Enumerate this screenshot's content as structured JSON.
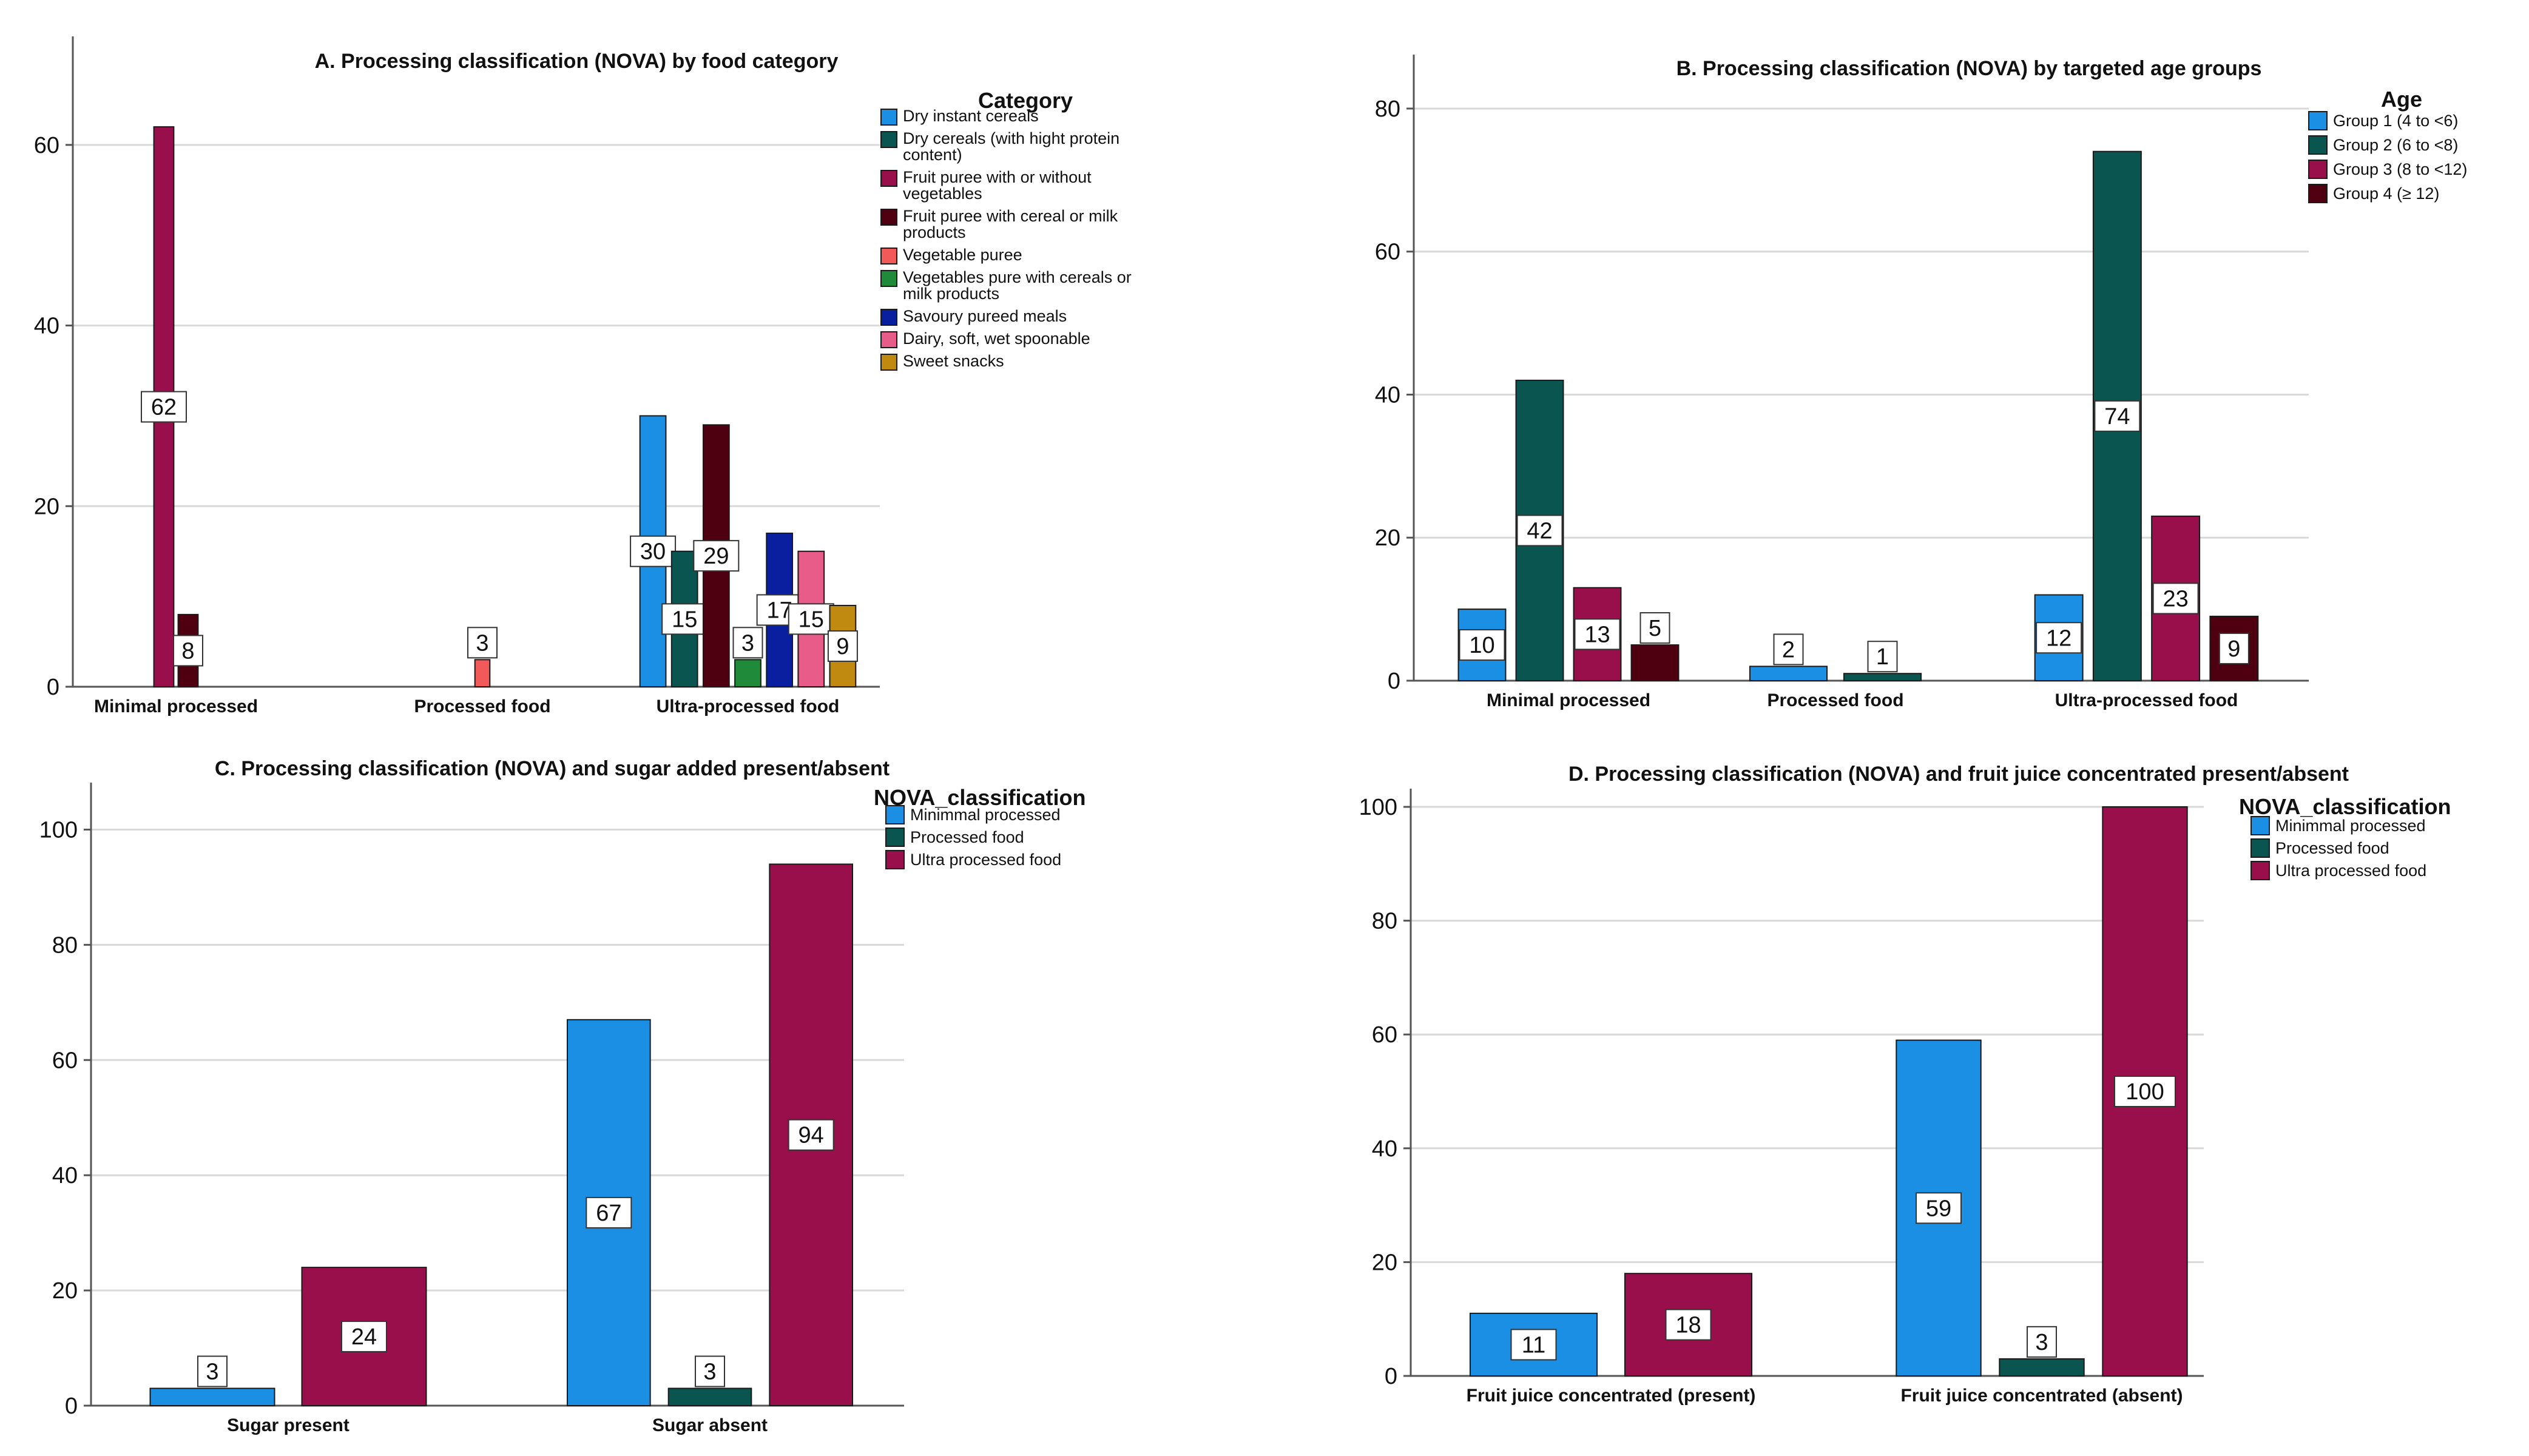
{
  "colors": {
    "blue": "#1B8FE3",
    "teal": "#0A5550",
    "maroon": "#990F4C",
    "darkred": "#4E0010",
    "salmon": "#F25A5A",
    "green": "#1E8A3A",
    "navy": "#0A1FA0",
    "pink": "#E85C8A",
    "gold": "#C08A10",
    "grid": "#D9D9D9",
    "axis": "#555555"
  },
  "chart_data": [
    {
      "type": "bar",
      "title": "A. Processing classification (NOVA) by food category",
      "categories": [
        "Minimal processed",
        "Processed food",
        "Ultra-processed food"
      ],
      "ylim": [
        0,
        70
      ],
      "yticks": [
        "0",
        "20",
        "40",
        "60"
      ],
      "grid": true,
      "legend_title": "Category",
      "legend_position": "top-right",
      "series": [
        {
          "name": "Dry  instant cereals",
          "legend_lines": [
            "Dry  instant cereals"
          ],
          "color": "blue",
          "values": [
            null,
            null,
            30
          ]
        },
        {
          "name": "Dry cereals (with hight protein content)",
          "legend_lines": [
            "Dry cereals (with hight protein",
            "content)"
          ],
          "color": "teal",
          "values": [
            null,
            null,
            15
          ]
        },
        {
          "name": "Fruit puree with or without vegetables",
          "legend_lines": [
            "Fruit puree with or without",
            "vegetables"
          ],
          "color": "maroon",
          "values": [
            62,
            null,
            null
          ]
        },
        {
          "name": "Fruit puree with cereal or milk products",
          "legend_lines": [
            "Fruit puree with cereal or milk",
            "products"
          ],
          "color": "darkred",
          "values": [
            8,
            null,
            29
          ]
        },
        {
          "name": "Vegetable puree",
          "legend_lines": [
            "Vegetable puree"
          ],
          "color": "salmon",
          "values": [
            null,
            3,
            null
          ]
        },
        {
          "name": "Vegetables pure with cereals or milk products",
          "legend_lines": [
            "Vegetables pure with cereals or",
            "milk products"
          ],
          "color": "green",
          "values": [
            null,
            null,
            3
          ]
        },
        {
          "name": "Savoury pureed meals",
          "legend_lines": [
            "Savoury pureed meals"
          ],
          "color": "navy",
          "values": [
            null,
            null,
            17
          ]
        },
        {
          "name": "Dairy, soft, wet spoonable",
          "legend_lines": [
            "Dairy, soft, wet spoonable"
          ],
          "color": "pink",
          "values": [
            null,
            null,
            15
          ]
        },
        {
          "name": "Sweet snacks",
          "legend_lines": [
            "Sweet snacks"
          ],
          "color": "gold",
          "values": [
            null,
            null,
            9
          ]
        }
      ]
    },
    {
      "type": "bar",
      "title": "B. Processing classification (NOVA) by targeted age groups",
      "categories": [
        "Minimal processed",
        "Processed food",
        "Ultra-processed food"
      ],
      "ylim": [
        0,
        85
      ],
      "yticks": [
        "0",
        "20",
        "40",
        "60",
        "80"
      ],
      "grid": true,
      "legend_title": "Age",
      "legend_position": "top-right",
      "series": [
        {
          "name": "Group 1 (4 to <6)",
          "legend_lines": [
            "Group 1 (4 to <6)"
          ],
          "color": "blue",
          "values": [
            10,
            2,
            12
          ]
        },
        {
          "name": "Group 2 (6 to <8)",
          "legend_lines": [
            "Group 2 (6 to <8)"
          ],
          "color": "teal",
          "values": [
            42,
            1,
            74
          ]
        },
        {
          "name": "Group 3 (8 to <12)",
          "legend_lines": [
            "Group 3 (8 to <12)"
          ],
          "color": "maroon",
          "values": [
            13,
            null,
            23
          ]
        },
        {
          "name": "Group 4 (≥ 12)",
          "legend_lines": [
            "Group 4 (≥ 12)"
          ],
          "color": "darkred",
          "values": [
            5,
            null,
            9
          ]
        }
      ]
    },
    {
      "type": "bar",
      "title": "C. Processing classification (NOVA) and sugar added present/absent",
      "categories": [
        "Sugar present",
        "Sugar absent"
      ],
      "ylim": [
        0,
        105
      ],
      "yticks": [
        "0",
        "20",
        "40",
        "60",
        "80",
        "100"
      ],
      "grid": true,
      "legend_title": "NOVA_classification",
      "legend_position": "top-right",
      "series": [
        {
          "name": "Minimmal processed",
          "legend_lines": [
            "Minimmal processed"
          ],
          "color": "blue",
          "values": [
            3,
            67
          ]
        },
        {
          "name": "Processed  food",
          "legend_lines": [
            "Processed  food"
          ],
          "color": "teal",
          "values": [
            null,
            3
          ]
        },
        {
          "name": "Ultra processed food",
          "legend_lines": [
            "Ultra processed food"
          ],
          "color": "maroon",
          "values": [
            24,
            94
          ]
        }
      ]
    },
    {
      "type": "bar",
      "title": "D. Processing classification (NOVA) and fruit juice concentrated present/absent",
      "categories": [
        "Fruit juice concentrated (present)",
        "Fruit juice concentrated (absent)"
      ],
      "ylim": [
        0,
        100
      ],
      "yticks": [
        "0",
        "20",
        "40",
        "60",
        "80",
        "100"
      ],
      "grid": true,
      "legend_title": "NOVA_classification",
      "legend_position": "top-right",
      "series": [
        {
          "name": "Minimmal processed",
          "legend_lines": [
            "Minimmal processed"
          ],
          "color": "blue",
          "values": [
            11,
            59
          ]
        },
        {
          "name": "Processed  food",
          "legend_lines": [
            "Processed  food"
          ],
          "color": "teal",
          "values": [
            null,
            3
          ]
        },
        {
          "name": "Ultra processed food",
          "legend_lines": [
            "Ultra processed food"
          ],
          "color": "maroon",
          "values": [
            18,
            100
          ]
        }
      ]
    }
  ]
}
